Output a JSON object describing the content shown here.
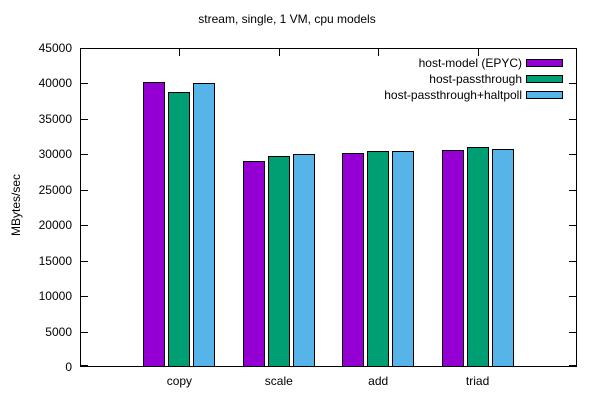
{
  "chart_data": {
    "type": "bar",
    "title": "stream, single, 1 VM, cpu models",
    "xlabel": "",
    "ylabel": "MBytes/sec",
    "categories": [
      "copy",
      "scale",
      "add",
      "triad"
    ],
    "series": [
      {
        "name": "host-model (EPYC)",
        "color": "#9400d3",
        "values": [
          40200,
          29100,
          30200,
          30600
        ]
      },
      {
        "name": "host-passthrough",
        "color": "#009e73",
        "values": [
          38800,
          29800,
          30500,
          31000
        ]
      },
      {
        "name": "host-passthrough+haltpoll",
        "color": "#56b4e9",
        "values": [
          40100,
          30000,
          30400,
          30700
        ]
      }
    ],
    "ylim": [
      0,
      45000
    ],
    "ytick_step": 5000,
    "yticks": [
      0,
      5000,
      10000,
      15000,
      20000,
      25000,
      30000,
      35000,
      40000,
      45000
    ],
    "grid": false,
    "legend_position": "top-right-inside",
    "background_color": "#ffffff",
    "axis_color": "#000000",
    "text_color": "#000000"
  }
}
